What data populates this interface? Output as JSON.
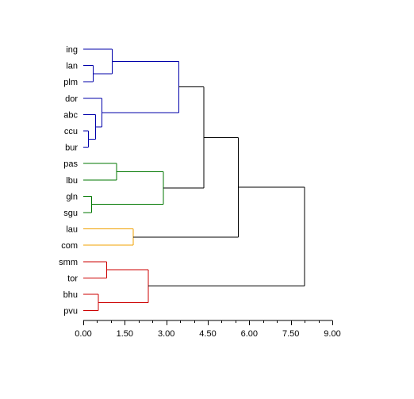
{
  "chart_data": {
    "type": "dendrogram",
    "orientation": "horizontal",
    "title": "",
    "xlabel": "",
    "ylabel": "",
    "xlim": [
      0,
      9
    ],
    "x_ticks": [
      "0.00",
      "1.50",
      "3.00",
      "4.50",
      "6.00",
      "7.50",
      "9.00"
    ],
    "x_tick_values": [
      0,
      1.5,
      3,
      4.5,
      6,
      7.5,
      9
    ],
    "minor_tick_step": 0.5,
    "leaves": [
      "ing",
      "lan",
      "plm",
      "dor",
      "abc",
      "ccu",
      "bur",
      "pas",
      "lbu",
      "gln",
      "sgu",
      "lau",
      "com",
      "smm",
      "tor",
      "bhu",
      "pvu"
    ],
    "colors": {
      "blue": "#0000aa",
      "green": "#007700",
      "orange": "#f0a000",
      "red": "#cc0000",
      "black": "#000000"
    },
    "merges": [
      {
        "id": "n1",
        "left": "bur",
        "right": "ccu",
        "height": 0.18,
        "color": "blue"
      },
      {
        "id": "n2",
        "left": "lan",
        "right": "plm",
        "height": 0.36,
        "color": "blue"
      },
      {
        "id": "n3",
        "left": "gln",
        "right": "sgu",
        "height": 0.3,
        "color": "green"
      },
      {
        "id": "n4",
        "left": "abc",
        "right": "n1",
        "height": 0.45,
        "color": "blue"
      },
      {
        "id": "n5",
        "left": "bhu",
        "right": "pvu",
        "height": 0.55,
        "color": "red"
      },
      {
        "id": "n6",
        "left": "dor",
        "right": "n4",
        "height": 0.68,
        "color": "blue"
      },
      {
        "id": "n7",
        "left": "smm",
        "right": "tor",
        "height": 0.85,
        "color": "red"
      },
      {
        "id": "n8",
        "left": "ing",
        "right": "n2",
        "height": 1.05,
        "color": "blue"
      },
      {
        "id": "n9",
        "left": "pas",
        "right": "lbu",
        "height": 1.2,
        "color": "green"
      },
      {
        "id": "n10",
        "left": "lau",
        "right": "com",
        "height": 1.8,
        "color": "orange"
      },
      {
        "id": "n11",
        "left": "n7",
        "right": "n5",
        "height": 2.35,
        "color": "red"
      },
      {
        "id": "n12",
        "left": "n9",
        "right": "n3",
        "height": 2.9,
        "color": "green"
      },
      {
        "id": "n13",
        "left": "n8",
        "right": "n6",
        "height": 3.45,
        "color": "blue"
      },
      {
        "id": "n14",
        "left": "n13",
        "right": "n12",
        "height": 4.35,
        "color": "black"
      },
      {
        "id": "n15",
        "left": "n14",
        "right": "n10",
        "height": 5.6,
        "color": "black"
      },
      {
        "id": "n16",
        "left": "n15",
        "right": "n11",
        "height": 8.0,
        "color": "black"
      }
    ]
  }
}
